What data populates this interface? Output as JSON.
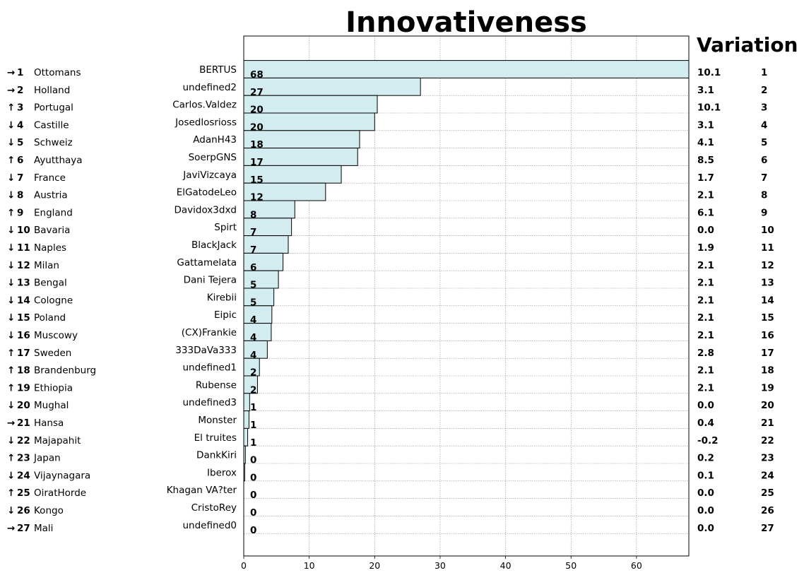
{
  "chart_data": {
    "type": "bar",
    "title": "Innovativeness",
    "variation_title": "Variation",
    "xlim": [
      0,
      68
    ],
    "x_ticks": [
      "0",
      "10",
      "20",
      "30",
      "40",
      "50",
      "60"
    ],
    "grid": true,
    "categories": [
      "BERTUS",
      "undefined2",
      "Carlos.Valdez",
      "Josedlosrioss",
      "AdanH43",
      "SoerpGNS",
      "JaviVizcaya",
      "ElGatodeLeo",
      "Davidox3dxd",
      "Spirt",
      "BlackJack",
      "Gattamelata",
      "Dani Tejera",
      "Kirebii",
      "Eipic",
      "(CX)Frankie",
      "333DaVa333",
      "undefined1",
      "Rubense",
      "undefined3",
      "Monster",
      "El truites",
      "DankKiri",
      "Iberox",
      "Khagan VA?ter",
      "CristoRey",
      "undefined0"
    ],
    "values": [
      68,
      27,
      20.4,
      20,
      17.7,
      17.4,
      14.9,
      12.5,
      7.8,
      7.3,
      6.8,
      6,
      5.3,
      4.6,
      4.3,
      4.2,
      3.6,
      2.4,
      2.1,
      0.9,
      0.8,
      0.6,
      0.25,
      0.15,
      0,
      0,
      0
    ],
    "value_labels": [
      "68",
      "27",
      "20",
      "20",
      "18",
      "17",
      "15",
      "12",
      "8",
      "7",
      "7",
      "6",
      "5",
      "5",
      "4",
      "4",
      "4",
      "2",
      "2",
      "1",
      "1",
      "1",
      "0",
      "0",
      "0",
      "0",
      "0"
    ],
    "rank_arrows": [
      "→",
      "→",
      "↑",
      "↓",
      "↓",
      "↑",
      "↓",
      "↓",
      "↑",
      "↓",
      "↓",
      "↓",
      "↓",
      "↓",
      "↓",
      "↓",
      "↑",
      "↑",
      "↑",
      "↓",
      "→",
      "↓",
      "↑",
      "↓",
      "↑",
      "↓",
      "→"
    ],
    "ranks": [
      "1",
      "2",
      "3",
      "4",
      "5",
      "6",
      "7",
      "8",
      "9",
      "10",
      "11",
      "12",
      "13",
      "14",
      "15",
      "16",
      "17",
      "18",
      "19",
      "20",
      "21",
      "22",
      "23",
      "24",
      "25",
      "26",
      "27"
    ],
    "countries": [
      "Ottomans",
      "Holland",
      "Portugal",
      "Castille",
      "Schweiz",
      "Ayutthaya",
      "France",
      "Austria",
      "England",
      "Bavaria",
      "Naples",
      "Milan",
      "Bengal",
      "Cologne",
      "Poland",
      "Muscowy",
      "Sweden",
      "Brandenburg",
      "Ethiopia",
      "Mughal",
      "Hansa",
      "Majapahit",
      "Japan",
      "Vijaynagara",
      "OiratHorde",
      "Kongo",
      "Mali"
    ],
    "variations": [
      "10.1",
      "3.1",
      "10.1",
      "3.1",
      "4.1",
      "8.5",
      "1.7",
      "2.1",
      "6.1",
      "0.0",
      "1.9",
      "2.1",
      "2.1",
      "2.1",
      "2.1",
      "2.1",
      "2.8",
      "2.1",
      "2.1",
      "0.0",
      "0.4",
      "-0.2",
      "0.2",
      "0.1",
      "0.0",
      "0.0",
      "0.0"
    ],
    "variation_colors": [
      "green",
      "green",
      "green",
      "green",
      "green",
      "green",
      "green",
      "green",
      "green",
      "green",
      "green",
      "green",
      "green",
      "green",
      "green",
      "green",
      "green",
      "green",
      "green",
      "green",
      "green",
      "red",
      "green",
      "green",
      "green",
      "red",
      "red"
    ],
    "right_ranks": [
      "1",
      "2",
      "3",
      "4",
      "5",
      "6",
      "7",
      "8",
      "9",
      "10",
      "11",
      "12",
      "13",
      "14",
      "15",
      "16",
      "17",
      "18",
      "19",
      "20",
      "21",
      "22",
      "23",
      "24",
      "25",
      "26",
      "27"
    ]
  },
  "colors": {
    "bar_fill": "#d2ecf0",
    "bar_edge": "#000000",
    "up": "#008000",
    "down": "#ff0000",
    "same": "#6b6b00",
    "green": "#008000",
    "red": "#ff0000",
    "grid": "#8c8c8c"
  }
}
